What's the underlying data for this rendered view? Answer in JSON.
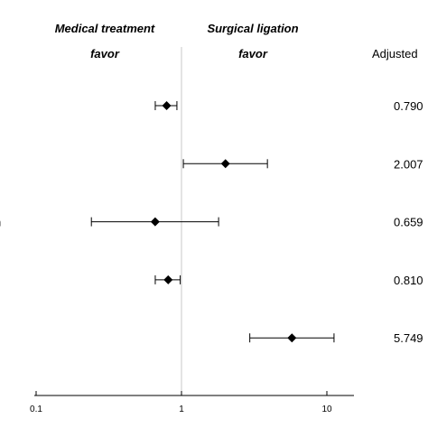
{
  "chart_data": {
    "type": "scatter",
    "subtype": "forest-plot",
    "x_scale": "log",
    "xlim": [
      0.1,
      20
    ],
    "x_ticks": [
      "0.1",
      "1",
      "10"
    ],
    "reference_line": 1,
    "headers": {
      "left_line1": "Medical treatment",
      "left_line2": "favor",
      "right_line1": "Surgical ligation",
      "right_line2": "favor",
      "value_column": "Adjusted"
    },
    "rows": [
      {
        "label": "",
        "estimate": 0.79,
        "lower": 0.66,
        "upper": 0.93,
        "value_text": "0.790"
      },
      {
        "label": "",
        "estimate": 2.007,
        "lower": 1.03,
        "upper": 3.9,
        "value_text": "2.007"
      },
      {
        "label": "n",
        "estimate": 0.659,
        "lower": 0.24,
        "upper": 1.8,
        "value_text": "0.659"
      },
      {
        "label": "",
        "estimate": 0.81,
        "lower": 0.66,
        "upper": 0.98,
        "value_text": "0.810"
      },
      {
        "label": "",
        "estimate": 5.749,
        "lower": 2.95,
        "upper": 11.2,
        "value_text": "5.749"
      }
    ],
    "grid": false,
    "legend": "none"
  }
}
